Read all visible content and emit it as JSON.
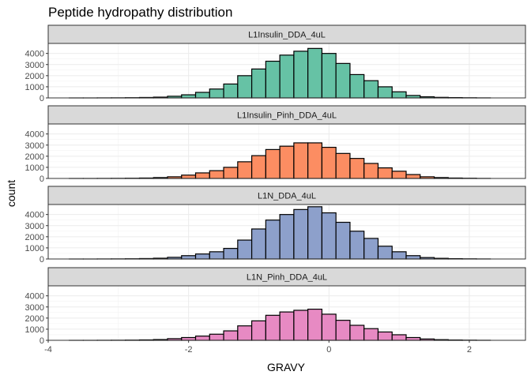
{
  "chart_data": {
    "type": "bar",
    "title": "Peptide hydropathy distribution",
    "xlabel": "GRAVY",
    "ylabel": "count",
    "xlim": [
      -4.0,
      2.8
    ],
    "ylim": [
      0,
      4900
    ],
    "x_ticks": [
      -4,
      -2,
      0,
      2
    ],
    "y_ticks": [
      0,
      1000,
      2000,
      3000,
      4000
    ],
    "bin_width": 0.2,
    "bin_centers": [
      -3.6,
      -3.4,
      -3.2,
      -3.0,
      -2.8,
      -2.6,
      -2.4,
      -2.2,
      -2.0,
      -1.8,
      -1.6,
      -1.4,
      -1.2,
      -1.0,
      -0.8,
      -0.6,
      -0.4,
      -0.2,
      0.0,
      0.2,
      0.4,
      0.6,
      0.8,
      1.0,
      1.2,
      1.4,
      1.6,
      1.8,
      2.0,
      2.2
    ],
    "grid": true,
    "facets": [
      {
        "name": "L1Insulin_DDA_4uL",
        "color": "#66C2A5",
        "values": [
          0,
          0,
          5,
          10,
          20,
          40,
          70,
          150,
          280,
          500,
          800,
          1250,
          2000,
          2600,
          3300,
          3850,
          4200,
          4450,
          4000,
          3100,
          2100,
          1550,
          1000,
          550,
          220,
          100,
          50,
          30,
          15,
          5
        ]
      },
      {
        "name": "L1Insulin_Pinh_DDA_4uL",
        "color": "#FC8D62",
        "values": [
          0,
          0,
          5,
          10,
          20,
          40,
          80,
          150,
          300,
          500,
          700,
          1000,
          1500,
          2050,
          2600,
          2900,
          3200,
          3200,
          2800,
          2250,
          1800,
          1350,
          950,
          650,
          350,
          150,
          80,
          40,
          20,
          5
        ]
      },
      {
        "name": "L1N_DDA_4uL",
        "color": "#8DA0CB",
        "values": [
          0,
          0,
          5,
          10,
          20,
          40,
          70,
          150,
          300,
          450,
          650,
          950,
          1700,
          2700,
          3500,
          4000,
          4450,
          4700,
          4150,
          3300,
          2500,
          1850,
          1150,
          650,
          300,
          130,
          60,
          30,
          15,
          5
        ]
      },
      {
        "name": "L1N_Pinh_DDA_4uL",
        "color": "#E78AC3",
        "values": [
          0,
          0,
          5,
          10,
          20,
          40,
          70,
          150,
          250,
          380,
          550,
          850,
          1300,
          1750,
          2250,
          2550,
          2700,
          2800,
          2350,
          1800,
          1350,
          1050,
          750,
          500,
          250,
          120,
          60,
          30,
          15,
          5
        ]
      }
    ]
  }
}
